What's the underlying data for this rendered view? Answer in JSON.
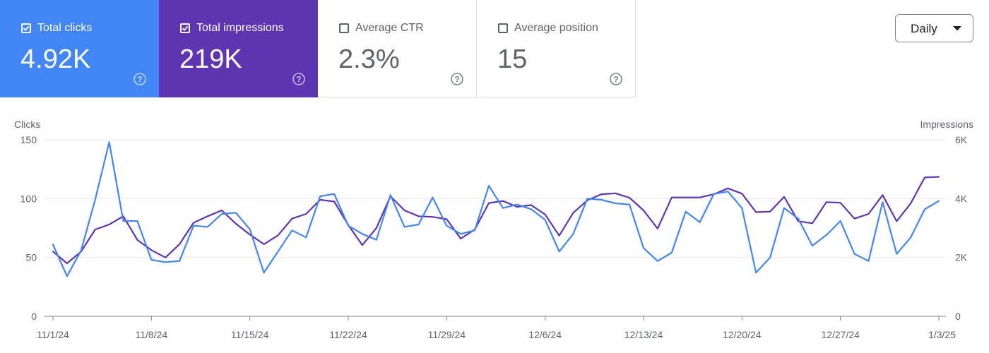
{
  "metric_cards": [
    {
      "label": "Total clicks",
      "value": "4.92K",
      "checked": true,
      "color": "#4285f4"
    },
    {
      "label": "Total impressions",
      "value": "219K",
      "checked": true,
      "color": "#5e35b1"
    },
    {
      "label": "Average CTR",
      "value": "2.3%",
      "checked": false,
      "color": "#ffffff"
    },
    {
      "label": "Average position",
      "value": "15",
      "checked": false,
      "color": "#ffffff"
    }
  ],
  "granularity": {
    "selected": "Daily"
  },
  "chart_data": {
    "type": "line",
    "x": [
      "11/1/24",
      "11/2/24",
      "11/3/24",
      "11/4/24",
      "11/5/24",
      "11/6/24",
      "11/7/24",
      "11/8/24",
      "11/9/24",
      "11/10/24",
      "11/11/24",
      "11/12/24",
      "11/13/24",
      "11/14/24",
      "11/15/24",
      "11/16/24",
      "11/17/24",
      "11/18/24",
      "11/19/24",
      "11/20/24",
      "11/21/24",
      "11/22/24",
      "11/23/24",
      "11/24/24",
      "11/25/24",
      "11/26/24",
      "11/27/24",
      "11/28/24",
      "11/29/24",
      "11/30/24",
      "12/1/24",
      "12/2/24",
      "12/3/24",
      "12/4/24",
      "12/5/24",
      "12/6/24",
      "12/7/24",
      "12/8/24",
      "12/9/24",
      "12/10/24",
      "12/11/24",
      "12/12/24",
      "12/13/24",
      "12/14/24",
      "12/15/24",
      "12/16/24",
      "12/17/24",
      "12/18/24",
      "12/19/24",
      "12/20/24",
      "12/21/24",
      "12/22/24",
      "12/23/24",
      "12/24/24",
      "12/25/24",
      "12/26/24",
      "12/27/24",
      "12/28/24",
      "12/29/24",
      "12/30/24",
      "12/31/24",
      "1/1/25",
      "1/2/25",
      "1/3/25"
    ],
    "x_tick_labels": [
      "11/1/24",
      "11/8/24",
      "11/15/24",
      "11/22/24",
      "11/29/24",
      "12/6/24",
      "12/13/24",
      "12/20/24",
      "12/27/24",
      "1/3/25"
    ],
    "series": [
      {
        "name": "Clicks",
        "axis": "left",
        "color": "#4285f4",
        "values": [
          61,
          34,
          56,
          99,
          148,
          81,
          81,
          48,
          46,
          47,
          77,
          76,
          87,
          88,
          74,
          37,
          55,
          73,
          67,
          102,
          104,
          77,
          70,
          65,
          103,
          76,
          78,
          101,
          77,
          70,
          73,
          111,
          92,
          95,
          91,
          82,
          55,
          70,
          100,
          99,
          96,
          95,
          58,
          47,
          54,
          89,
          80,
          104,
          106,
          92,
          37,
          50,
          92,
          83,
          60,
          69,
          81,
          53,
          47,
          97,
          53,
          67,
          91,
          98
        ]
      },
      {
        "name": "Impressions",
        "axis": "right",
        "color": "#5e35b1",
        "values": [
          2200,
          1800,
          2200,
          2950,
          3120,
          3400,
          2600,
          2250,
          2000,
          2450,
          3180,
          3400,
          3600,
          3150,
          2780,
          2450,
          2750,
          3320,
          3480,
          3960,
          3900,
          3100,
          2420,
          3000,
          4080,
          3600,
          3400,
          3380,
          3300,
          2640,
          2950,
          3850,
          3920,
          3720,
          3780,
          3460,
          2740,
          3520,
          3940,
          4150,
          4180,
          4030,
          3600,
          2980,
          4040,
          4040,
          4040,
          4150,
          4350,
          4170,
          3540,
          3560,
          4060,
          3230,
          3160,
          3880,
          3860,
          3320,
          3480,
          4120,
          3230,
          3840,
          4720,
          4740
        ]
      }
    ],
    "left_axis": {
      "label": "Clicks",
      "ticks": [
        0,
        50,
        100,
        150
      ],
      "tick_labels": [
        "0",
        "50",
        "100",
        "150"
      ],
      "ylim": [
        0,
        150
      ]
    },
    "right_axis": {
      "label": "Impressions",
      "ticks": [
        0,
        2000,
        4000,
        6000
      ],
      "tick_labels": [
        "0",
        "2K",
        "4K",
        "6K"
      ],
      "ylim": [
        0,
        6000
      ]
    },
    "grid": true,
    "legend": "none"
  }
}
